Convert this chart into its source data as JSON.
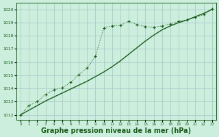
{
  "bg_color": "#cceedd",
  "grid_color": "#aacccc",
  "line_color": "#1a5c1a",
  "xlabel": "Graphe pression niveau de la mer (hPa)",
  "xlabel_fontsize": 7,
  "ylim": [
    1011.6,
    1020.5
  ],
  "xlim": [
    -0.5,
    23.5
  ],
  "yticks": [
    1012,
    1013,
    1014,
    1015,
    1016,
    1017,
    1018,
    1019,
    1020
  ],
  "xticks": [
    0,
    1,
    2,
    3,
    4,
    5,
    6,
    7,
    8,
    9,
    10,
    11,
    12,
    13,
    14,
    15,
    16,
    17,
    18,
    19,
    20,
    21,
    22,
    23
  ],
  "series1_x": [
    0,
    1,
    2,
    3,
    4,
    5,
    6,
    7,
    8,
    9,
    10,
    11,
    12,
    13,
    14,
    15,
    16,
    17,
    18,
    19,
    20,
    21,
    22,
    23
  ],
  "series1_y": [
    1012.0,
    1012.35,
    1012.7,
    1013.05,
    1013.35,
    1013.65,
    1013.95,
    1014.25,
    1014.55,
    1014.9,
    1015.25,
    1015.65,
    1016.1,
    1016.6,
    1017.1,
    1017.6,
    1018.05,
    1018.45,
    1018.75,
    1019.0,
    1019.2,
    1019.45,
    1019.7,
    1020.0
  ],
  "series2_x": [
    0,
    1,
    2,
    3,
    4,
    5,
    6,
    7,
    8,
    9,
    10,
    11,
    12,
    13,
    14,
    15,
    16,
    17,
    18,
    19,
    20,
    21,
    22,
    23
  ],
  "series2_y": [
    1012.0,
    1012.7,
    1013.0,
    1013.55,
    1013.9,
    1014.05,
    1014.45,
    1015.05,
    1015.55,
    1016.45,
    1018.6,
    1018.75,
    1018.8,
    1019.1,
    1018.85,
    1018.7,
    1018.65,
    1018.75,
    1018.9,
    1019.1,
    1019.2,
    1019.4,
    1019.6,
    1020.05
  ]
}
